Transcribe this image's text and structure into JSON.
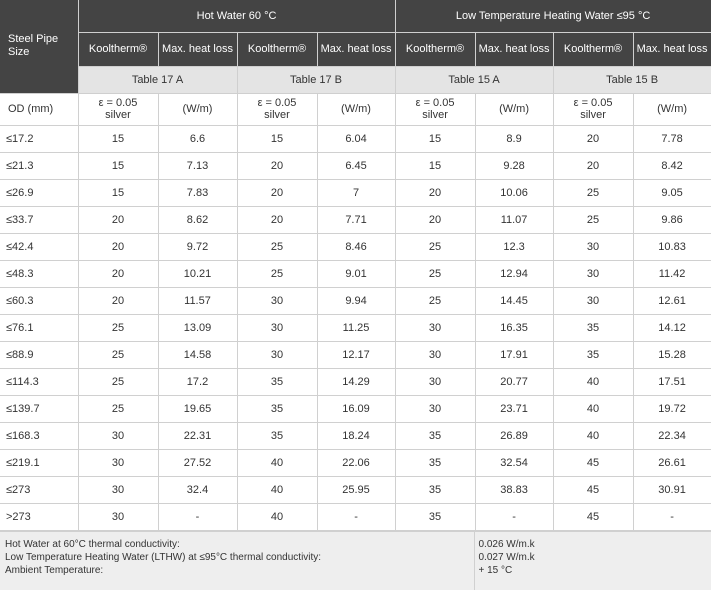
{
  "header": {
    "steel_pipe_size": "Steel Pipe Size",
    "group_hot": "Hot Water 60 °C",
    "group_lthw": "Low Temperature Heating Water ≤95 °C",
    "kooltherm": "Kooltherm®",
    "max_heat_loss": "Max. heat loss",
    "tables": [
      "Table 17 A",
      "Table 17 B",
      "Table 15 A",
      "Table 15 B"
    ]
  },
  "subheader": {
    "od": "OD (mm)",
    "eps": "ε = 0.05",
    "silver": "silver",
    "wm": "(W/m)"
  },
  "rows": [
    {
      "size": "≤17.2",
      "v": [
        "15",
        "6.6",
        "15",
        "6.04",
        "15",
        "8.9",
        "20",
        "7.78"
      ]
    },
    {
      "size": "≤21.3",
      "v": [
        "15",
        "7.13",
        "20",
        "6.45",
        "15",
        "9.28",
        "20",
        "8.42"
      ]
    },
    {
      "size": "≤26.9",
      "v": [
        "15",
        "7.83",
        "20",
        "7",
        "20",
        "10.06",
        "25",
        "9.05"
      ]
    },
    {
      "size": "≤33.7",
      "v": [
        "20",
        "8.62",
        "20",
        "7.71",
        "20",
        "11.07",
        "25",
        "9.86"
      ]
    },
    {
      "size": "≤42.4",
      "v": [
        "20",
        "9.72",
        "25",
        "8.46",
        "25",
        "12.3",
        "30",
        "10.83"
      ]
    },
    {
      "size": "≤48.3",
      "v": [
        "20",
        "10.21",
        "25",
        "9.01",
        "25",
        "12.94",
        "30",
        "11.42"
      ]
    },
    {
      "size": "≤60.3",
      "v": [
        "20",
        "11.57",
        "30",
        "9.94",
        "25",
        "14.45",
        "30",
        "12.61"
      ]
    },
    {
      "size": "≤76.1",
      "v": [
        "25",
        "13.09",
        "30",
        "11.25",
        "30",
        "16.35",
        "35",
        "14.12"
      ]
    },
    {
      "size": "≤88.9",
      "v": [
        "25",
        "14.58",
        "30",
        "12.17",
        "30",
        "17.91",
        "35",
        "15.28"
      ]
    },
    {
      "size": "≤114.3",
      "v": [
        "25",
        "17.2",
        "35",
        "14.29",
        "30",
        "20.77",
        "40",
        "17.51"
      ]
    },
    {
      "size": "≤139.7",
      "v": [
        "25",
        "19.65",
        "35",
        "16.09",
        "30",
        "23.71",
        "40",
        "19.72"
      ]
    },
    {
      "size": "≤168.3",
      "v": [
        "30",
        "22.31",
        "35",
        "18.24",
        "35",
        "26.89",
        "40",
        "22.34"
      ]
    },
    {
      "size": "≤219.1",
      "v": [
        "30",
        "27.52",
        "40",
        "22.06",
        "35",
        "32.54",
        "45",
        "26.61"
      ]
    },
    {
      "size": "≤273",
      "v": [
        "30",
        "32.4",
        "40",
        "25.95",
        "35",
        "38.83",
        "45",
        "30.91"
      ]
    },
    {
      "size": ">273",
      "v": [
        "30",
        "-",
        "40",
        "-",
        "35",
        "-",
        "45",
        "-"
      ]
    }
  ],
  "footer": {
    "labels": [
      "Hot Water at 60°C thermal conductivity:",
      "Low Temperature Heating Water (LTHW) at ≤95°C thermal conductivity:",
      "Ambient Temperature:"
    ],
    "values": [
      "0.026 W/m.k",
      "0.027 W/m.k",
      "+ 15 °C"
    ]
  }
}
